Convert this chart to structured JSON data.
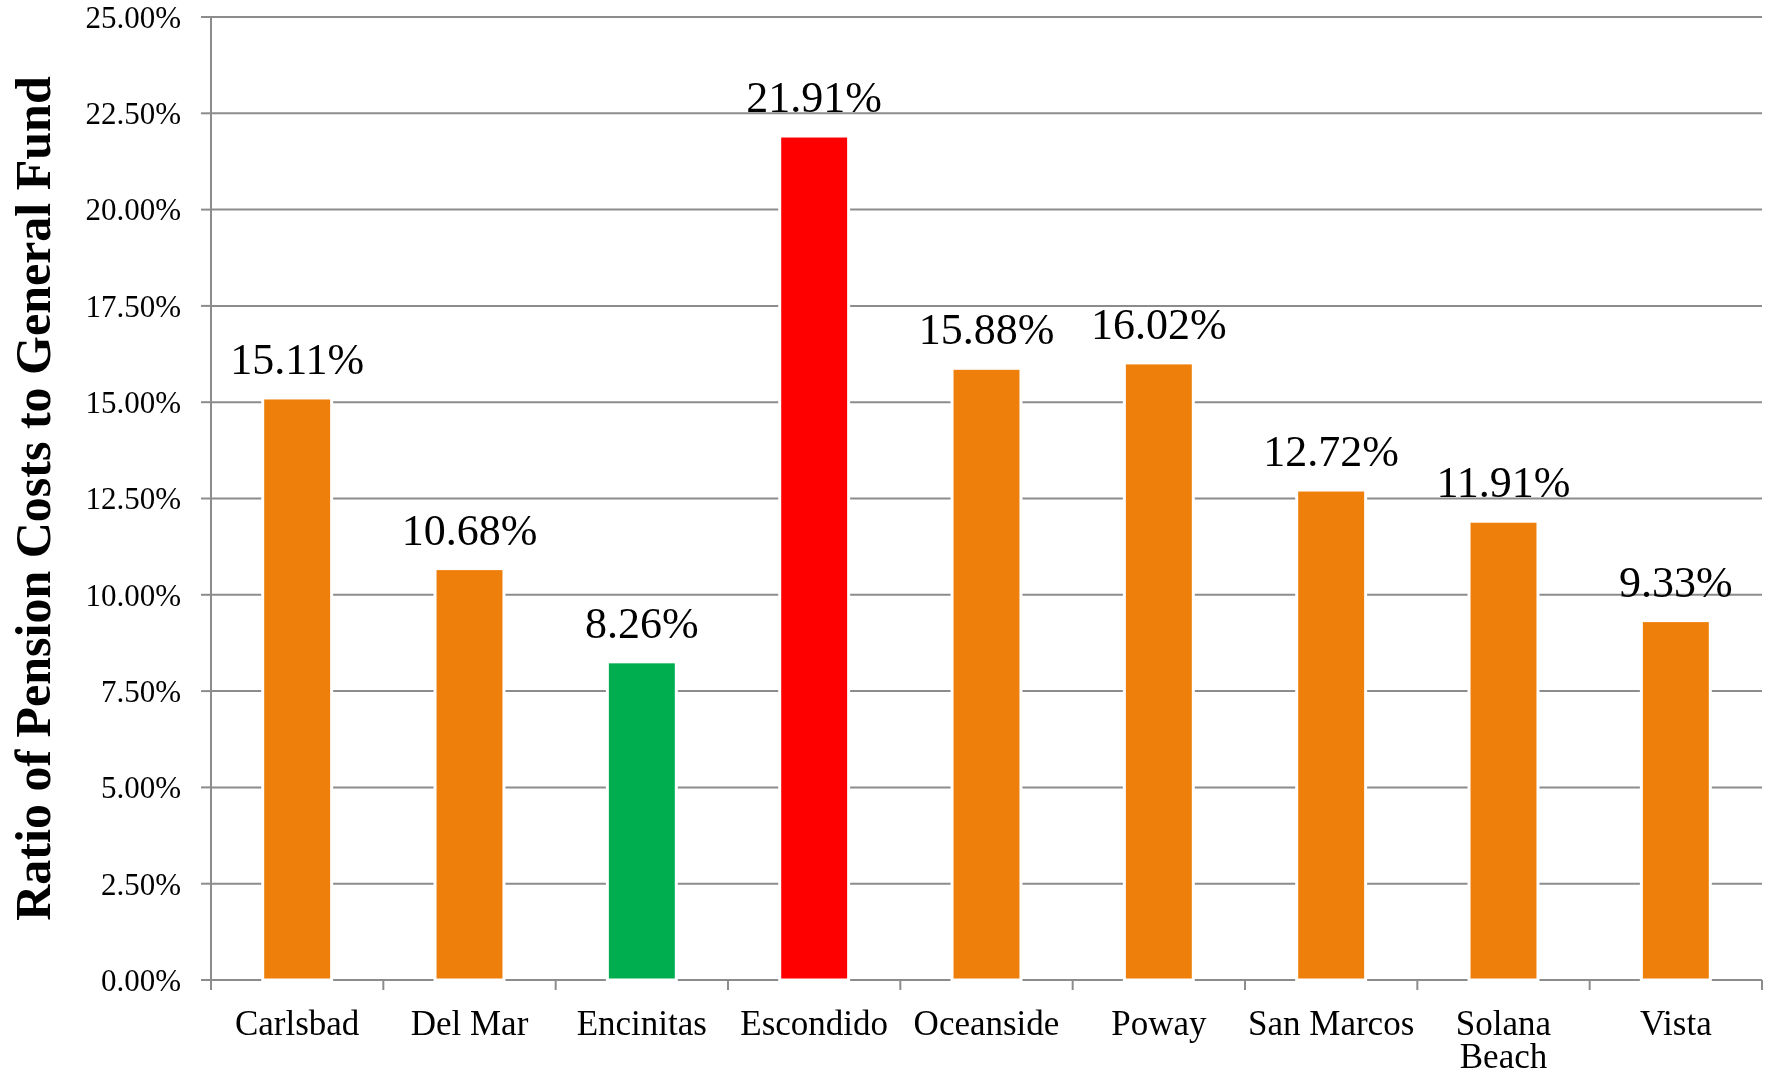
{
  "chart_data": {
    "type": "bar",
    "ylabel": "Ratio of Pension Costs to General Fund",
    "categories": [
      "Carlsbad",
      "Del Mar",
      "Encinitas",
      "Escondido",
      "Oceanside",
      "Poway",
      "San Marcos",
      "Solana Beach",
      "Vista"
    ],
    "values": [
      15.11,
      10.68,
      8.26,
      21.91,
      15.88,
      16.02,
      12.72,
      11.91,
      9.33
    ],
    "value_labels": [
      "15.11%",
      "10.68%",
      "8.26%",
      "21.91%",
      "15.88%",
      "16.02%",
      "12.72%",
      "11.91%",
      "9.33%"
    ],
    "colors": [
      "#ee7f0b",
      "#ee7f0b",
      "#00ad4f",
      "#ff0000",
      "#ee7f0b",
      "#ee7f0b",
      "#ee7f0b",
      "#ee7f0b",
      "#ee7f0b"
    ],
    "ylim": [
      0,
      25
    ],
    "yticks": [
      {
        "value": 0,
        "label": "0.00%"
      },
      {
        "value": 2.5,
        "label": "2.50%"
      },
      {
        "value": 5,
        "label": "5.00%"
      },
      {
        "value": 7.5,
        "label": "7.50%"
      },
      {
        "value": 10,
        "label": "10.00%"
      },
      {
        "value": 12.5,
        "label": "12.50%"
      },
      {
        "value": 15,
        "label": "15.00%"
      },
      {
        "value": 17.5,
        "label": "17.50%"
      },
      {
        "value": 20,
        "label": "20.00%"
      },
      {
        "value": 22.5,
        "label": "22.50%"
      },
      {
        "value": 25,
        "label": "25.00%"
      }
    ],
    "grid": "y"
  }
}
